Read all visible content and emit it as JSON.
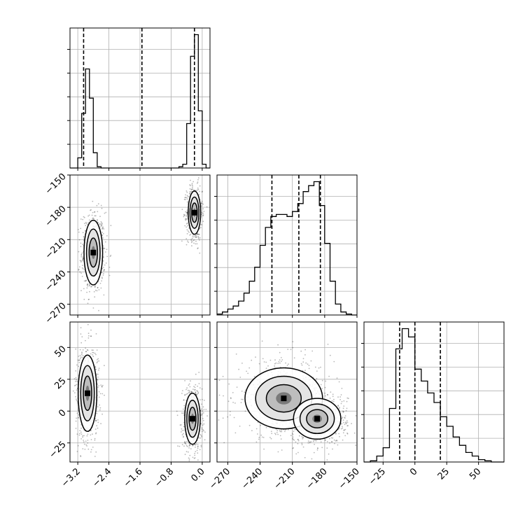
{
  "chart_data": {
    "type": "corner",
    "grid": true,
    "parameters": [
      {
        "range": [
          -3.4,
          0.2
        ],
        "ticks": [
          -3.2,
          -2.4,
          -1.6,
          -0.8,
          0.0
        ],
        "tick_labels": [
          "−3.2",
          "−2.4",
          "−1.6",
          "−0.8",
          "0.0"
        ],
        "quantiles": [
          -3.05,
          -1.55,
          -0.2
        ]
      },
      {
        "range": [
          -280,
          -150
        ],
        "ticks": [
          -270,
          -240,
          -210,
          -180,
          -150
        ],
        "tick_labels": [
          "−270",
          "−240",
          "−210",
          "−180",
          "−150"
        ],
        "quantiles": [
          -229,
          -204,
          -184
        ]
      },
      {
        "range": [
          -40,
          70
        ],
        "ticks": [
          -25,
          0,
          25,
          50
        ],
        "tick_labels": [
          "−25",
          "0",
          "25",
          "50"
        ],
        "quantiles": [
          -12,
          0,
          20
        ]
      }
    ],
    "histograms": [
      {
        "param": 0,
        "edges": [
          -3.4,
          -3.3,
          -3.2,
          -3.1,
          -3.0,
          -2.9,
          -2.8,
          -2.7,
          -2.6,
          -2.5,
          -2.4,
          -2.3,
          -2.2,
          -2.1,
          -2.0,
          -1.9,
          -1.8,
          -1.7,
          -1.6,
          -1.5,
          -1.4,
          -1.3,
          -1.2,
          -1.1,
          -1.0,
          -0.9,
          -0.8,
          -0.7,
          -0.6,
          -0.5,
          -0.4,
          -0.3,
          -0.2,
          -0.1,
          0.0,
          0.1,
          0.2
        ],
        "counts": [
          0,
          0,
          8,
          43,
          78,
          55,
          12,
          1,
          0,
          0,
          0,
          0,
          0,
          0,
          0,
          0,
          0,
          0,
          0,
          0,
          0,
          0,
          0,
          0,
          0,
          0,
          0,
          0,
          1,
          3,
          35,
          88,
          105,
          45,
          3,
          0
        ]
      },
      {
        "param": 1,
        "edges": [
          -280,
          -275,
          -270,
          -265,
          -260,
          -255,
          -250,
          -245,
          -240,
          -235,
          -230,
          -225,
          -220,
          -215,
          -210,
          -205,
          -200,
          -195,
          -190,
          -185,
          -180,
          -175,
          -170,
          -165,
          -160,
          -155,
          -150
        ],
        "counts": [
          1,
          3,
          6,
          9,
          14,
          22,
          34,
          48,
          70,
          88,
          99,
          101,
          101,
          99,
          104,
          112,
          124,
          130,
          134,
          110,
          72,
          34,
          11,
          3,
          1,
          0
        ]
      },
      {
        "param": 2,
        "edges": [
          -40,
          -35,
          -30,
          -25,
          -20,
          -15,
          -10,
          -5,
          0,
          5,
          10,
          15,
          20,
          25,
          30,
          35,
          40,
          45,
          50,
          55,
          60,
          65,
          70
        ],
        "counts": [
          0,
          1,
          5,
          12,
          45,
          95,
          112,
          105,
          78,
          68,
          58,
          50,
          38,
          30,
          21,
          14,
          8,
          5,
          2,
          1,
          0,
          0
        ]
      }
    ],
    "scatter_2d": [
      {
        "x_param": 0,
        "y_param": 1,
        "modes": [
          {
            "center": [
              -2.8,
              -222
            ],
            "sigma": [
              0.12,
              15
            ]
          },
          {
            "center": [
              -0.2,
              -185
            ],
            "sigma": [
              0.08,
              10
            ]
          }
        ]
      },
      {
        "x_param": 0,
        "y_param": 2,
        "modes": [
          {
            "center": [
              -2.95,
              14
            ],
            "sigma": [
              0.12,
              15
            ]
          },
          {
            "center": [
              -0.25,
              -6
            ],
            "sigma": [
              0.1,
              10
            ]
          }
        ]
      },
      {
        "x_param": 1,
        "y_param": 2,
        "modes": [
          {
            "center": [
              -218,
              10
            ],
            "sigma": [
              18,
              12
            ]
          },
          {
            "center": [
              -187,
              -6
            ],
            "sigma": [
              11,
              8
            ]
          }
        ]
      }
    ],
    "colors": {
      "hist": "#000000",
      "points": "#000000",
      "grid": "#b0b0b0"
    }
  }
}
